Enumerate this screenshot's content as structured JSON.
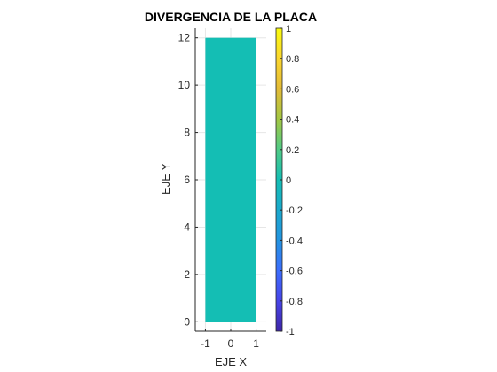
{
  "chart_data": {
    "type": "heatmap",
    "title": "DIVERGENCIA DE LA PLACA",
    "xlabel": "EJE X",
    "ylabel": "EJE Y",
    "xlim": [
      -1.4,
      1.4
    ],
    "ylim": [
      -0.4,
      12.4
    ],
    "x_ticks": [
      -1,
      0,
      1
    ],
    "y_ticks": [
      0,
      2,
      4,
      6,
      8,
      10,
      12
    ],
    "surface": {
      "x_range": [
        -1,
        1
      ],
      "y_range": [
        0,
        12
      ],
      "value": 0,
      "color": "#14BEB4"
    },
    "grid": true,
    "colorbar": {
      "limits": [
        -1,
        1
      ],
      "ticks": [
        -1,
        -0.8,
        -0.6,
        -0.4,
        -0.2,
        0,
        0.2,
        0.4,
        0.6,
        0.8,
        1
      ],
      "colormap": [
        "#3E26A8",
        "#4744E8",
        "#3C6DFD",
        "#2394E1",
        "#1AA9CD",
        "#14BEB4",
        "#50CB86",
        "#A3C743",
        "#E3BB37",
        "#FBD62E",
        "#F9FB0E"
      ]
    }
  }
}
